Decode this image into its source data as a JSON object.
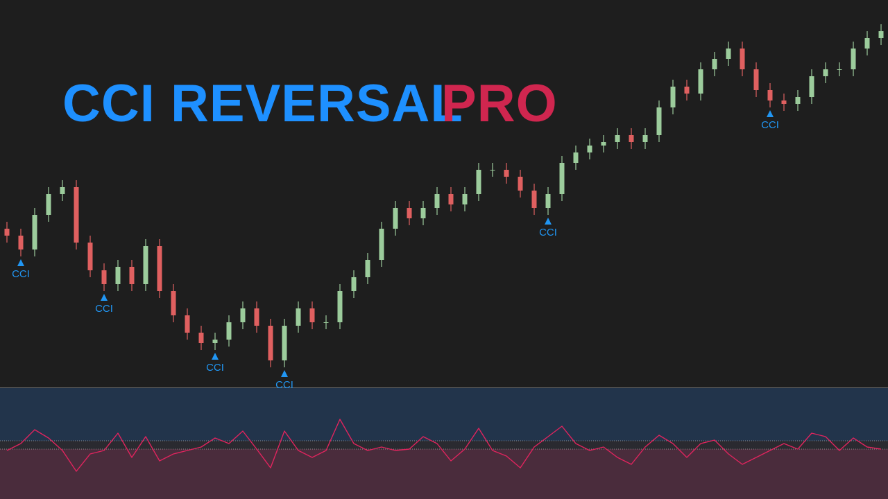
{
  "chart_data": [
    {
      "type": "candlestick",
      "title": "CCI REVERSAL",
      "title_accent": "PRO",
      "title_color": "#1e90ff",
      "title_accent_color": "#d0264f",
      "up_color": "#9ccc9c",
      "down_color": "#e06060",
      "ylim": [
        0,
        560
      ],
      "open": [
        230,
        220,
        200,
        250,
        280,
        290,
        210,
        170,
        150,
        175,
        150,
        205,
        140,
        105,
        80,
        65,
        70,
        95,
        115,
        90,
        40,
        90,
        115,
        95,
        95,
        140,
        160,
        185,
        230,
        260,
        245,
        260,
        280,
        265,
        280,
        315,
        315,
        305,
        285,
        260,
        280,
        325,
        340,
        350,
        355,
        365,
        355,
        365,
        405,
        435,
        425,
        460,
        475,
        490,
        460,
        430,
        415,
        410,
        420,
        450,
        460,
        460,
        490,
        505
      ],
      "high": [
        240,
        230,
        260,
        290,
        300,
        300,
        220,
        180,
        185,
        185,
        215,
        215,
        150,
        115,
        90,
        80,
        105,
        125,
        125,
        100,
        100,
        125,
        125,
        105,
        150,
        170,
        195,
        240,
        270,
        270,
        270,
        290,
        290,
        290,
        325,
        325,
        325,
        315,
        295,
        290,
        335,
        350,
        360,
        365,
        375,
        375,
        375,
        415,
        445,
        445,
        470,
        485,
        500,
        500,
        470,
        440,
        425,
        430,
        460,
        470,
        470,
        500,
        515,
        525
      ],
      "low": [
        210,
        190,
        190,
        240,
        270,
        200,
        160,
        140,
        140,
        140,
        140,
        130,
        95,
        70,
        55,
        55,
        60,
        85,
        80,
        30,
        30,
        80,
        85,
        85,
        85,
        130,
        150,
        175,
        220,
        235,
        235,
        250,
        255,
        255,
        270,
        305,
        295,
        275,
        250,
        250,
        270,
        315,
        330,
        340,
        345,
        345,
        345,
        355,
        395,
        415,
        415,
        450,
        465,
        450,
        420,
        405,
        400,
        400,
        410,
        440,
        450,
        450,
        480,
        495
      ],
      "close": [
        220,
        200,
        250,
        280,
        290,
        210,
        170,
        150,
        175,
        150,
        205,
        140,
        105,
        80,
        65,
        70,
        95,
        115,
        90,
        40,
        90,
        115,
        95,
        95,
        140,
        160,
        185,
        230,
        260,
        245,
        260,
        280,
        265,
        280,
        315,
        315,
        305,
        285,
        260,
        280,
        325,
        340,
        350,
        355,
        365,
        355,
        365,
        405,
        435,
        425,
        460,
        475,
        490,
        460,
        430,
        415,
        410,
        420,
        450,
        460,
        460,
        490,
        505,
        515
      ],
      "signals": [
        {
          "index": 1,
          "label": "CCI"
        },
        {
          "index": 7,
          "label": "CCI"
        },
        {
          "index": 15,
          "label": "CCI"
        },
        {
          "index": 20,
          "label": "CCI"
        },
        {
          "index": 39,
          "label": "CCI"
        },
        {
          "index": 55,
          "label": "CCI"
        }
      ],
      "signal_color": "#2196f3"
    },
    {
      "type": "line",
      "color": "#e0245e",
      "ylim": [
        0,
        160
      ],
      "levels": [
        72,
        84
      ],
      "values": [
        70,
        80,
        100,
        88,
        70,
        40,
        65,
        70,
        95,
        60,
        90,
        55,
        65,
        70,
        75,
        88,
        80,
        98,
        72,
        45,
        98,
        70,
        60,
        70,
        115,
        80,
        70,
        75,
        70,
        72,
        90,
        80,
        55,
        72,
        102,
        70,
        62,
        45,
        75,
        90,
        105,
        80,
        70,
        75,
        60,
        50,
        75,
        92,
        80,
        60,
        80,
        85,
        65,
        50,
        60,
        70,
        80,
        72,
        95,
        90,
        70,
        88,
        75,
        72
      ]
    }
  ]
}
